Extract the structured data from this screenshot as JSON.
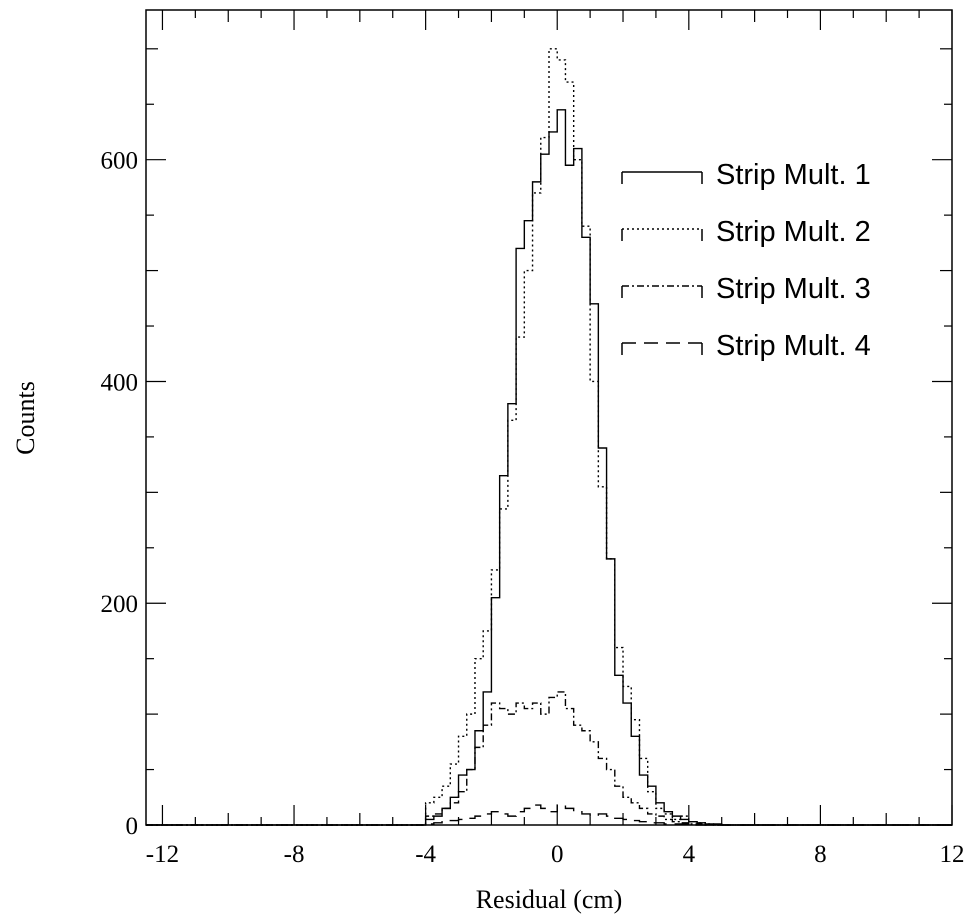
{
  "chart_data": {
    "type": "line",
    "style": "step-histogram",
    "title": "",
    "xlabel": "Residual (cm)",
    "ylabel": "Counts",
    "xlim": [
      -12.5,
      12
    ],
    "ylim": [
      0,
      735
    ],
    "x_ticks": [
      -12,
      -8,
      -4,
      0,
      4,
      8,
      12
    ],
    "x_tick_labels": [
      "-12",
      "-8",
      "-4",
      "0",
      "4",
      "8",
      "12"
    ],
    "y_ticks": [
      0,
      200,
      400,
      600
    ],
    "y_tick_labels": [
      "0",
      "200",
      "400",
      "600"
    ],
    "grid": false,
    "legend_placement": "top-right",
    "bin_edges": [
      -4.0,
      -3.75,
      -3.5,
      -3.25,
      -3.0,
      -2.75,
      -2.5,
      -2.25,
      -2.0,
      -1.75,
      -1.5,
      -1.25,
      -1.0,
      -0.75,
      -0.5,
      -0.25,
      0.0,
      0.25,
      0.5,
      0.75,
      1.0,
      1.25,
      1.5,
      1.75,
      2.0,
      2.25,
      2.5,
      2.75,
      3.0,
      3.25,
      3.5,
      3.75,
      4.0,
      4.25,
      4.5,
      4.75,
      5.0,
      5.25,
      5.5,
      5.75,
      6.0
    ],
    "series": [
      {
        "name": "Strip Mult. 1",
        "line_style": "solid",
        "values": [
          5,
          8,
          15,
          25,
          45,
          50,
          85,
          120,
          205,
          315,
          380,
          520,
          545,
          580,
          605,
          625,
          645,
          595,
          610,
          530,
          470,
          340,
          240,
          135,
          110,
          80,
          45,
          35,
          20,
          12,
          8,
          5,
          3,
          2,
          1,
          1,
          0,
          0,
          0,
          0
        ]
      },
      {
        "name": "Strip Mult. 2",
        "line_style": "dotted",
        "values": [
          20,
          25,
          35,
          55,
          80,
          100,
          150,
          175,
          230,
          285,
          365,
          440,
          500,
          570,
          620,
          700,
          690,
          670,
          600,
          540,
          400,
          305,
          240,
          160,
          125,
          95,
          60,
          30,
          15,
          10,
          5,
          8,
          3,
          2,
          1,
          0,
          0,
          0,
          0,
          0
        ]
      },
      {
        "name": "Strip Mult. 3",
        "line_style": "dash-dot",
        "values": [
          8,
          10,
          15,
          20,
          30,
          50,
          70,
          90,
          110,
          105,
          100,
          110,
          105,
          110,
          100,
          115,
          120,
          105,
          90,
          85,
          75,
          60,
          50,
          35,
          25,
          20,
          15,
          10,
          8,
          5,
          3,
          2,
          1,
          1,
          0,
          0,
          0,
          0,
          0,
          0
        ]
      },
      {
        "name": "Strip Mult. 4",
        "line_style": "dashed",
        "values": [
          1,
          2,
          3,
          4,
          5,
          6,
          8,
          10,
          12,
          10,
          8,
          12,
          15,
          18,
          15,
          12,
          18,
          15,
          12,
          10,
          8,
          10,
          8,
          6,
          5,
          4,
          3,
          2,
          2,
          1,
          1,
          1,
          0,
          0,
          0,
          0,
          0,
          0,
          0,
          0
        ]
      }
    ]
  }
}
